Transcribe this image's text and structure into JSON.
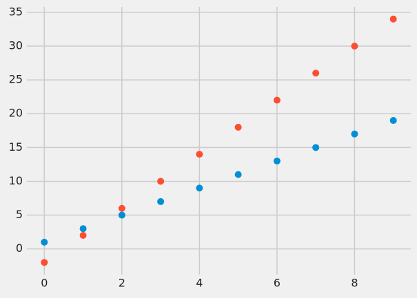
{
  "chart_data": {
    "type": "scatter",
    "x": [
      0,
      1,
      2,
      3,
      4,
      5,
      6,
      7,
      8,
      9
    ],
    "series": [
      {
        "color": "#008fd5",
        "values": [
          1,
          3,
          5,
          7,
          9,
          11,
          13,
          15,
          17,
          19
        ]
      },
      {
        "color": "#fc4f30",
        "values": [
          -2,
          2,
          6,
          10,
          14,
          18,
          22,
          26,
          30,
          34
        ]
      }
    ],
    "xlim": [
      -0.45,
      9.45
    ],
    "ylim": [
      -3.8,
      35.8
    ],
    "xticks": [
      0,
      2,
      4,
      6,
      8
    ],
    "yticks": [
      0,
      5,
      10,
      15,
      20,
      25,
      30,
      35
    ],
    "grid": true
  }
}
